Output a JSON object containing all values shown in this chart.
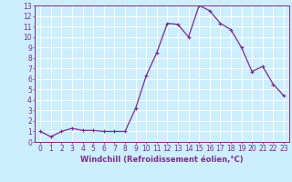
{
  "x": [
    0,
    1,
    2,
    3,
    4,
    5,
    6,
    7,
    8,
    9,
    10,
    11,
    12,
    13,
    14,
    15,
    16,
    17,
    18,
    19,
    20,
    21,
    22,
    23
  ],
  "y": [
    1.0,
    0.5,
    1.0,
    1.3,
    1.1,
    1.1,
    1.0,
    1.0,
    1.0,
    3.2,
    6.3,
    8.5,
    11.3,
    11.2,
    10.0,
    13.0,
    12.5,
    11.3,
    10.7,
    9.0,
    6.7,
    7.2,
    5.5,
    4.4
  ],
  "line_color": "#7B2D8B",
  "marker": "+",
  "marker_size": 3,
  "linewidth": 0.9,
  "xlabel": "Windchill (Refroidissement éolien,°C)",
  "xlabel_fontsize": 6.0,
  "background_color": "#cceeff",
  "grid_color": "#ffffff",
  "tick_color": "#7B2D8B",
  "xlim": [
    -0.5,
    23.5
  ],
  "ylim": [
    0,
    13
  ],
  "xticks": [
    0,
    1,
    2,
    3,
    4,
    5,
    6,
    7,
    8,
    9,
    10,
    11,
    12,
    13,
    14,
    15,
    16,
    17,
    18,
    19,
    20,
    21,
    22,
    23
  ],
  "yticks": [
    0,
    1,
    2,
    3,
    4,
    5,
    6,
    7,
    8,
    9,
    10,
    11,
    12,
    13
  ],
  "tick_fontsize": 5.5
}
